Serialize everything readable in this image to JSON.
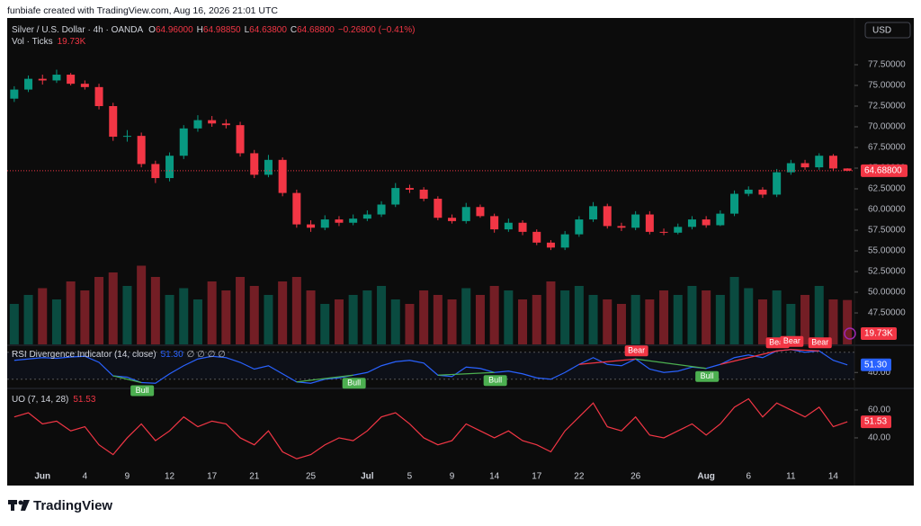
{
  "header": {
    "caption": "funbiafe created with TradingView.com, Aug 16, 2026 21:01 UTC",
    "currency": "USD",
    "brand": "TradingView"
  },
  "chart_data": {
    "type": "candlestick",
    "title": "Silver / U.S. Dollar · 4h · OANDA",
    "ohlc_legend": [
      {
        "key": "O",
        "value": "64.96000"
      },
      {
        "key": "H",
        "value": "64.98850"
      },
      {
        "key": "L",
        "value": "64.63800"
      },
      {
        "key": "C",
        "value": "64.68800"
      }
    ],
    "change": "−0.26800 (−0.41%)",
    "volume_title": "Vol · Ticks",
    "volume_last_label": "19.73K",
    "up_color": "#089981",
    "down_color": "#f23645",
    "categories": [
      null,
      null,
      "Jun",
      null,
      null,
      "4",
      null,
      null,
      "9",
      null,
      null,
      "12",
      null,
      null,
      "17",
      null,
      null,
      "21",
      null,
      null,
      null,
      "25",
      null,
      null,
      null,
      "Jul",
      null,
      null,
      "5",
      null,
      null,
      "9",
      null,
      null,
      "14",
      null,
      null,
      "17",
      null,
      null,
      "22",
      null,
      null,
      null,
      "26",
      null,
      null,
      null,
      null,
      "Aug",
      null,
      null,
      "6",
      null,
      null,
      "11",
      null,
      null,
      "14",
      null
    ],
    "open": [
      73.4,
      74.5,
      75.8,
      75.6,
      76.3,
      75.2,
      74.8,
      72.5,
      68.8,
      68.9,
      65.5,
      63.8,
      66.5,
      69.8,
      70.8,
      70.4,
      70.2,
      66.8,
      64.2,
      66.0,
      62.0,
      58.2,
      57.8,
      58.8,
      58.4,
      58.9,
      59.4,
      60.6,
      62.6,
      62.4,
      61.3,
      59.0,
      58.6,
      60.3,
      59.2,
      57.6,
      58.4,
      57.3,
      56.0,
      55.4,
      57.0,
      58.8,
      60.4,
      58.0,
      57.8,
      59.4,
      57.3,
      57.2,
      57.9,
      58.8,
      58.1,
      59.5,
      61.9,
      62.4,
      61.8,
      64.5,
      65.6,
      65.1,
      66.5,
      64.96
    ],
    "high": [
      74.9,
      76.2,
      76.3,
      76.9,
      76.5,
      75.6,
      75.2,
      72.9,
      69.6,
      69.3,
      65.9,
      66.9,
      70.2,
      71.4,
      71.3,
      70.9,
      70.6,
      67.2,
      66.6,
      66.3,
      62.4,
      58.7,
      59.3,
      59.2,
      59.4,
      59.9,
      61.0,
      63.2,
      63.0,
      62.7,
      61.6,
      59.4,
      60.8,
      60.6,
      59.5,
      58.9,
      58.7,
      57.6,
      56.3,
      57.4,
      59.2,
      60.9,
      60.7,
      58.4,
      59.8,
      59.8,
      57.7,
      58.3,
      59.2,
      59.2,
      59.9,
      62.3,
      62.8,
      62.7,
      64.9,
      66.0,
      66.0,
      66.8,
      66.7,
      64.9885
    ],
    "low": [
      73.0,
      74.2,
      75.1,
      75.3,
      75.0,
      74.5,
      72.1,
      68.3,
      68.2,
      65.1,
      63.2,
      63.4,
      66.1,
      69.4,
      70.0,
      69.8,
      66.4,
      63.8,
      63.9,
      61.6,
      57.8,
      57.3,
      57.5,
      58.0,
      58.1,
      58.6,
      59.1,
      60.3,
      62.0,
      61.0,
      58.7,
      58.3,
      58.3,
      59.0,
      57.2,
      57.3,
      56.9,
      55.7,
      55.1,
      55.1,
      56.7,
      58.5,
      57.7,
      57.4,
      57.5,
      57.0,
      56.9,
      57.0,
      57.6,
      57.8,
      58.0,
      59.2,
      61.6,
      61.4,
      61.5,
      64.2,
      64.8,
      64.8,
      64.7,
      64.638
    ],
    "close": [
      74.5,
      75.8,
      75.6,
      76.3,
      75.2,
      74.8,
      72.5,
      68.8,
      68.9,
      65.5,
      63.8,
      66.5,
      69.8,
      70.8,
      70.4,
      70.2,
      66.8,
      64.2,
      66.0,
      62.0,
      58.2,
      57.8,
      58.8,
      58.4,
      58.9,
      59.4,
      60.6,
      62.6,
      62.4,
      61.3,
      59.0,
      58.6,
      60.3,
      59.2,
      57.6,
      58.4,
      57.3,
      56.0,
      55.4,
      57.0,
      58.8,
      60.4,
      58.0,
      57.8,
      59.4,
      57.3,
      57.2,
      57.9,
      58.8,
      58.1,
      59.5,
      61.9,
      62.4,
      61.8,
      64.5,
      65.6,
      65.1,
      66.5,
      64.96,
      64.688
    ],
    "volume": [
      18,
      22,
      25,
      20,
      28,
      24,
      30,
      32,
      26,
      35,
      30,
      22,
      25,
      20,
      28,
      24,
      30,
      26,
      22,
      28,
      30,
      24,
      18,
      20,
      22,
      24,
      26,
      20,
      18,
      24,
      22,
      20,
      25,
      22,
      26,
      24,
      20,
      22,
      28,
      24,
      26,
      22,
      20,
      18,
      22,
      20,
      24,
      22,
      26,
      24,
      22,
      30,
      25,
      20,
      24,
      18,
      22,
      26,
      20,
      19.73
    ],
    "volume_lim": [
      0,
      38
    ],
    "ylim": [
      43.7,
      83.15
    ],
    "yticks": [
      {
        "value": 77.5,
        "label": "77.50000"
      },
      {
        "value": 75,
        "label": "75.00000"
      },
      {
        "value": 72.5,
        "label": "72.50000"
      },
      {
        "value": 70,
        "label": "70.00000"
      },
      {
        "value": 67.5,
        "label": "67.50000"
      },
      {
        "value": 65,
        "label": "65.00000"
      },
      {
        "value": 62.5,
        "label": "62.50000"
      },
      {
        "value": 60,
        "label": "60.00000"
      },
      {
        "value": 57.5,
        "label": "57.50000"
      },
      {
        "value": 55,
        "label": "55.00000"
      },
      {
        "value": 52.5,
        "label": "52.50000"
      },
      {
        "value": 50,
        "label": "50.00000"
      },
      {
        "value": 47.5,
        "label": "47.50000"
      }
    ],
    "last_price": {
      "value": 64.688,
      "label": "64.68800"
    },
    "rsi": {
      "title": "RSI Divergence Indicator (14, close)",
      "last_label": "51.30",
      "flags": "∅ ∅ ∅ ∅",
      "color": "#2962ff",
      "values": [
        58,
        60,
        62,
        61,
        63,
        64,
        55,
        35,
        33,
        25,
        24,
        38,
        50,
        60,
        64,
        62,
        55,
        45,
        50,
        38,
        26,
        24,
        30,
        32,
        36,
        40,
        50,
        56,
        58,
        54,
        36,
        34,
        48,
        46,
        40,
        42,
        38,
        32,
        30,
        40,
        52,
        62,
        52,
        50,
        60,
        45,
        40,
        42,
        48,
        46,
        52,
        62,
        66,
        62,
        72,
        74,
        70,
        72,
        58,
        51.3
      ],
      "ylim": [
        19,
        79
      ],
      "levels": [
        30,
        70
      ],
      "yticks": [
        {
          "value": 40,
          "label": "40.00"
        }
      ],
      "divergences": [
        {
          "label": "Bull",
          "start": 7,
          "end": 9
        },
        {
          "label": "Bull",
          "start": 20,
          "end": 24
        },
        {
          "label": "Bull",
          "start": 30,
          "end": 34
        },
        {
          "label": "Bull",
          "start": 44,
          "end": 49
        },
        {
          "label": "Bear",
          "start": 40,
          "end": 44
        },
        {
          "label": "Bear",
          "start": 50,
          "end": 54
        },
        {
          "label": "Bear",
          "start": 54,
          "end": 55
        },
        {
          "label": "Bear",
          "start": 55,
          "end": 57
        }
      ]
    },
    "uo": {
      "title": "UO (7, 14, 28)",
      "last_label": "51.53",
      "color": "#f23645",
      "values": [
        55,
        58,
        50,
        52,
        45,
        48,
        35,
        28,
        40,
        50,
        38,
        45,
        55,
        48,
        52,
        50,
        40,
        35,
        45,
        30,
        25,
        28,
        35,
        40,
        38,
        45,
        55,
        58,
        50,
        40,
        35,
        38,
        50,
        45,
        40,
        45,
        38,
        35,
        30,
        45,
        55,
        65,
        48,
        45,
        55,
        42,
        40,
        45,
        50,
        42,
        50,
        62,
        68,
        55,
        65,
        60,
        55,
        62,
        48,
        51.53
      ],
      "ylim": [
        18.7,
        74.8
      ],
      "yticks": [
        {
          "value": 60,
          "label": "60.00"
        },
        {
          "value": 40,
          "label": "40.00"
        }
      ]
    }
  }
}
